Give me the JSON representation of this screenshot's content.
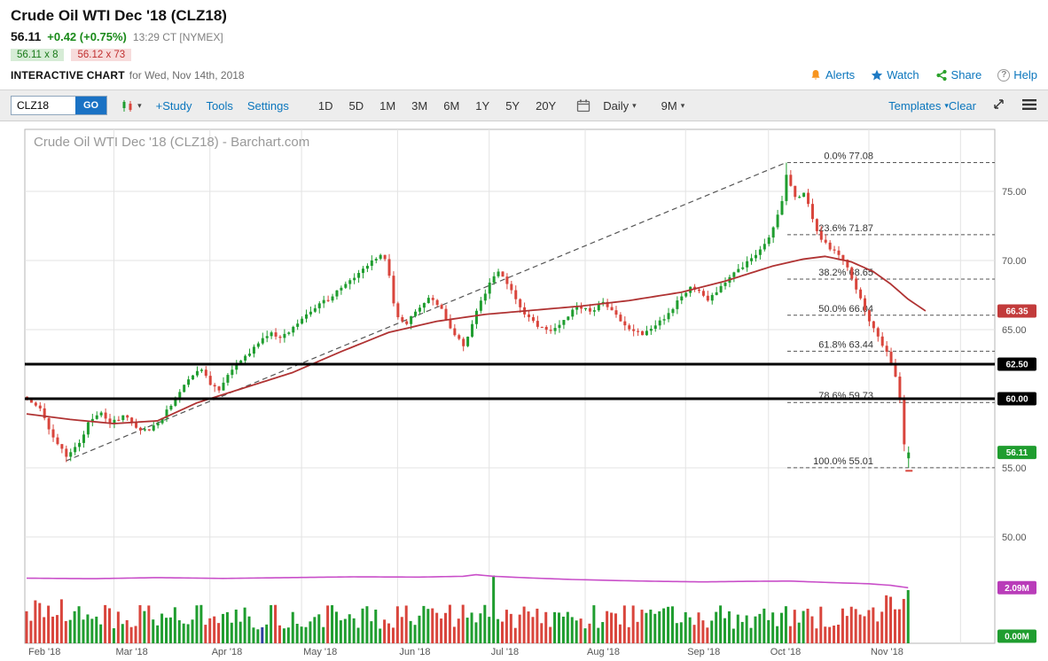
{
  "header": {
    "title": "Crude Oil WTI Dec '18 (CLZ18)",
    "last": "56.11",
    "change": "+0.42 (+0.75%)",
    "timestamp": "13:29 CT [NYMEX]",
    "bid": "56.11 x 8",
    "ask": "56.12 x 73",
    "section_label": "INTERACTIVE CHART",
    "section_date": "for Wed, Nov 14th, 2018",
    "links": {
      "alerts": "Alerts",
      "watch": "Watch",
      "share": "Share",
      "help": "Help"
    }
  },
  "toolbar": {
    "symbol_value": "CLZ18",
    "go": "GO",
    "study": "+Study",
    "tools": "Tools",
    "settings": "Settings",
    "ranges": [
      "1D",
      "5D",
      "1M",
      "3M",
      "6M",
      "1Y",
      "5Y",
      "20Y"
    ],
    "frequency": "Daily",
    "span": "9M",
    "templates": "Templates",
    "clear": "Clear"
  },
  "chart_data": {
    "type": "candlestick",
    "title": "Crude Oil WTI Dec '18 (CLZ18) - Barchart.com",
    "x_labels": [
      "Feb '18",
      "Mar '18",
      "Apr '18",
      "May '18",
      "Jun '18",
      "Jul '18",
      "Aug '18",
      "Sep '18",
      "Oct '18",
      "Nov '18"
    ],
    "month_start_days": [
      0,
      20,
      42,
      63,
      85,
      106,
      128,
      151,
      170,
      193
    ],
    "extra_gridline_day": 214,
    "total_days": 203,
    "y_ticks": [
      {
        "v": 75,
        "label": "75.00"
      },
      {
        "v": 70,
        "label": "70.00"
      },
      {
        "v": 65,
        "label": "65.00"
      },
      {
        "v": 60,
        "label": "60.00"
      },
      {
        "v": 55,
        "label": "55.00"
      },
      {
        "v": 50,
        "label": "50.00"
      }
    ],
    "price_path": [
      [
        0,
        59.9
      ],
      [
        3,
        59.3
      ],
      [
        6,
        57.2
      ],
      [
        9,
        55.8
      ],
      [
        12,
        56.8
      ],
      [
        14,
        58.3
      ],
      [
        17,
        59.0
      ],
      [
        19,
        58.2
      ],
      [
        22,
        58.8
      ],
      [
        25,
        57.9
      ],
      [
        28,
        57.7
      ],
      [
        31,
        58.6
      ],
      [
        34,
        60.1
      ],
      [
        37,
        61.4
      ],
      [
        40,
        62.1
      ],
      [
        42,
        61.0
      ],
      [
        44,
        60.6
      ],
      [
        47,
        62.1
      ],
      [
        50,
        63.1
      ],
      [
        53,
        64.0
      ],
      [
        56,
        64.8
      ],
      [
        58,
        64.4
      ],
      [
        61,
        65.2
      ],
      [
        64,
        66.1
      ],
      [
        67,
        66.9
      ],
      [
        70,
        67.4
      ],
      [
        73,
        68.3
      ],
      [
        76,
        69.1
      ],
      [
        79,
        70.0
      ],
      [
        81,
        70.4
      ],
      [
        82,
        70.1
      ],
      [
        83,
        68.9
      ],
      [
        84,
        66.9
      ],
      [
        85,
        65.9
      ],
      [
        87,
        65.4
      ],
      [
        89,
        66.3
      ],
      [
        92,
        67.3
      ],
      [
        95,
        66.5
      ],
      [
        98,
        64.6
      ],
      [
        100,
        63.8
      ],
      [
        102,
        65.4
      ],
      [
        104,
        67.1
      ],
      [
        106,
        68.4
      ],
      [
        108,
        69.2
      ],
      [
        110,
        68.3
      ],
      [
        112,
        67.2
      ],
      [
        114,
        66.1
      ],
      [
        117,
        65.2
      ],
      [
        120,
        64.9
      ],
      [
        123,
        65.7
      ],
      [
        126,
        66.7
      ],
      [
        129,
        66.3
      ],
      [
        132,
        67.0
      ],
      [
        134,
        66.4
      ],
      [
        136,
        65.6
      ],
      [
        139,
        64.9
      ],
      [
        141,
        64.6
      ],
      [
        144,
        65.3
      ],
      [
        147,
        66.2
      ],
      [
        150,
        67.4
      ],
      [
        152,
        68.1
      ],
      [
        154,
        67.8
      ],
      [
        156,
        67.1
      ],
      [
        158,
        67.7
      ],
      [
        161,
        68.8
      ],
      [
        164,
        69.5
      ],
      [
        167,
        70.4
      ],
      [
        169,
        71.2
      ],
      [
        171,
        72.4
      ],
      [
        173,
        74.3
      ],
      [
        174,
        76.2
      ],
      [
        176,
        74.6
      ],
      [
        178,
        74.9
      ],
      [
        180,
        73.0
      ],
      [
        182,
        71.5
      ],
      [
        184,
        70.8
      ],
      [
        186,
        70.4
      ],
      [
        188,
        69.5
      ],
      [
        190,
        67.9
      ],
      [
        192,
        66.4
      ],
      [
        193,
        65.6
      ],
      [
        195,
        64.5
      ],
      [
        197,
        63.4
      ],
      [
        199,
        61.6
      ],
      [
        200,
        60.0
      ],
      [
        201,
        56.7
      ],
      [
        202,
        56.11
      ]
    ],
    "key_candles": {
      "174": {
        "high": 77.08
      },
      "201": {
        "low": 56.2
      },
      "202": {
        "open": 55.69,
        "close": 56.11,
        "low": 55.01,
        "high": 56.55
      }
    },
    "ma_path": [
      [
        0,
        58.9
      ],
      [
        10,
        58.5
      ],
      [
        20,
        58.2
      ],
      [
        30,
        58.4
      ],
      [
        39,
        59.7
      ],
      [
        50,
        60.8
      ],
      [
        61,
        61.9
      ],
      [
        72,
        63.4
      ],
      [
        83,
        64.8
      ],
      [
        94,
        65.6
      ],
      [
        105,
        66.1
      ],
      [
        116,
        66.4
      ],
      [
        127,
        66.7
      ],
      [
        138,
        67.1
      ],
      [
        150,
        67.7
      ],
      [
        160,
        68.5
      ],
      [
        171,
        69.6
      ],
      [
        178,
        70.1
      ],
      [
        183,
        70.3
      ],
      [
        189,
        69.9
      ],
      [
        194,
        69.2
      ],
      [
        198,
        68.3
      ],
      [
        202,
        67.2
      ],
      [
        206,
        66.35
      ]
    ],
    "ma_last_value": 66.35,
    "ma_last_label": "66.35",
    "fib_levels": [
      {
        "text": "0.0% 77.08",
        "price": 77.08
      },
      {
        "text": "23.6% 71.87",
        "price": 71.87
      },
      {
        "text": "38.2% 68.65",
        "price": 68.65
      },
      {
        "text": "50.0% 66.04",
        "price": 66.04
      },
      {
        "text": "61.8% 63.44",
        "price": 63.44
      },
      {
        "text": "78.6% 59.73",
        "price": 59.73
      },
      {
        "text": "100.0% 55.01",
        "price": 55.01
      }
    ],
    "trendline": {
      "from": [
        9,
        55.5
      ],
      "to": [
        174,
        77.08
      ]
    },
    "support_lines": [
      {
        "price": 62.5,
        "label": "62.50"
      },
      {
        "price": 60.0,
        "label": "60.00"
      }
    ],
    "last_price": {
      "value": 56.11,
      "label": "56.11"
    },
    "low_marker": {
      "day": 202,
      "price": 54.85
    },
    "volume_pane": {
      "oi_path": [
        [
          0,
          2.45
        ],
        [
          15,
          2.43
        ],
        [
          30,
          2.47
        ],
        [
          45,
          2.44
        ],
        [
          60,
          2.47
        ],
        [
          75,
          2.5
        ],
        [
          90,
          2.49
        ],
        [
          100,
          2.52
        ],
        [
          103,
          2.58
        ],
        [
          107,
          2.52
        ],
        [
          115,
          2.46
        ],
        [
          125,
          2.4
        ],
        [
          135,
          2.36
        ],
        [
          145,
          2.33
        ],
        [
          155,
          2.31
        ],
        [
          165,
          2.33
        ],
        [
          175,
          2.34
        ],
        [
          185,
          2.28
        ],
        [
          193,
          2.24
        ],
        [
          198,
          2.18
        ],
        [
          202,
          2.09
        ]
      ],
      "oi_value": 2.09,
      "oi_label": "2.09M",
      "base_label": "0.00M",
      "spikes": {
        "107": 2.55,
        "202": 2.0
      },
      "special_bar": {
        "day": 54,
        "color": "#2b3f9e"
      }
    },
    "colors": {
      "up": "#1f9d2f",
      "down": "#d9453c",
      "ma": "#b03333",
      "ma_badge": "#c23b3b",
      "oi": "#c94fc9",
      "oi_badge": "#b93cb9",
      "fib": "#555555",
      "support": "#000000",
      "grid": "#e3e3e3",
      "watermark": "#999999",
      "axis_text": "#555555"
    }
  }
}
